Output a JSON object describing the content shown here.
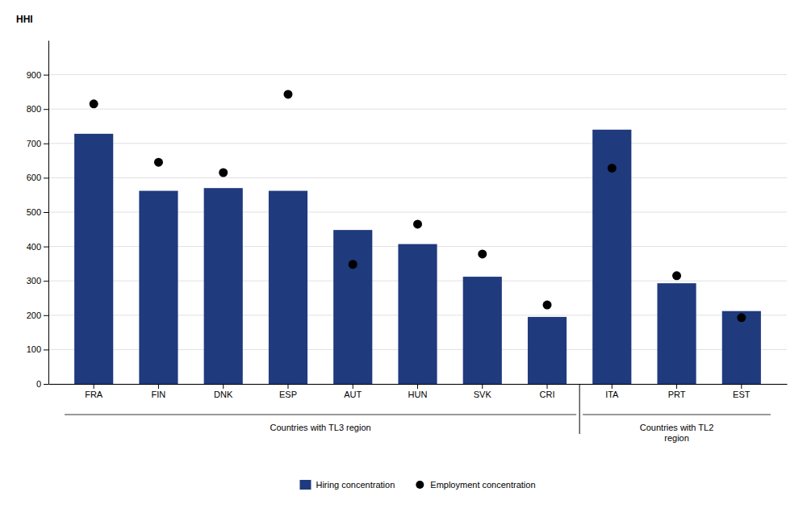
{
  "chart_data": {
    "type": "bar",
    "ylabel": "HHI",
    "categories": [
      "FRA",
      "FIN",
      "DNK",
      "ESP",
      "AUT",
      "HUN",
      "SVK",
      "CRI",
      "ITA",
      "PRT",
      "EST"
    ],
    "series": [
      {
        "name": "Hiring concentration",
        "type": "bar",
        "color": "#1F3A7D",
        "values": [
          728,
          562,
          570,
          562,
          448,
          407,
          312,
          195,
          740,
          293,
          212
        ]
      },
      {
        "name": "Employment concentration",
        "type": "scatter",
        "color": "#000000",
        "marker": "circle",
        "values": [
          815,
          645,
          615,
          843,
          348,
          465,
          378,
          230,
          628,
          315,
          193
        ]
      }
    ],
    "ylim": [
      0,
      1000
    ],
    "yticks": [
      0,
      100,
      200,
      300,
      400,
      500,
      600,
      700,
      800,
      900
    ],
    "grid": true,
    "legend": "bottom",
    "annotations": [
      {
        "text": "Countries with TL3 region",
        "categories": [
          "FRA",
          "FIN",
          "DNK",
          "ESP",
          "AUT",
          "HUN",
          "SVK",
          "CRI"
        ]
      },
      {
        "text": "Countries with TL2\nregion",
        "categories": [
          "ITA",
          "PRT",
          "EST"
        ]
      }
    ]
  }
}
